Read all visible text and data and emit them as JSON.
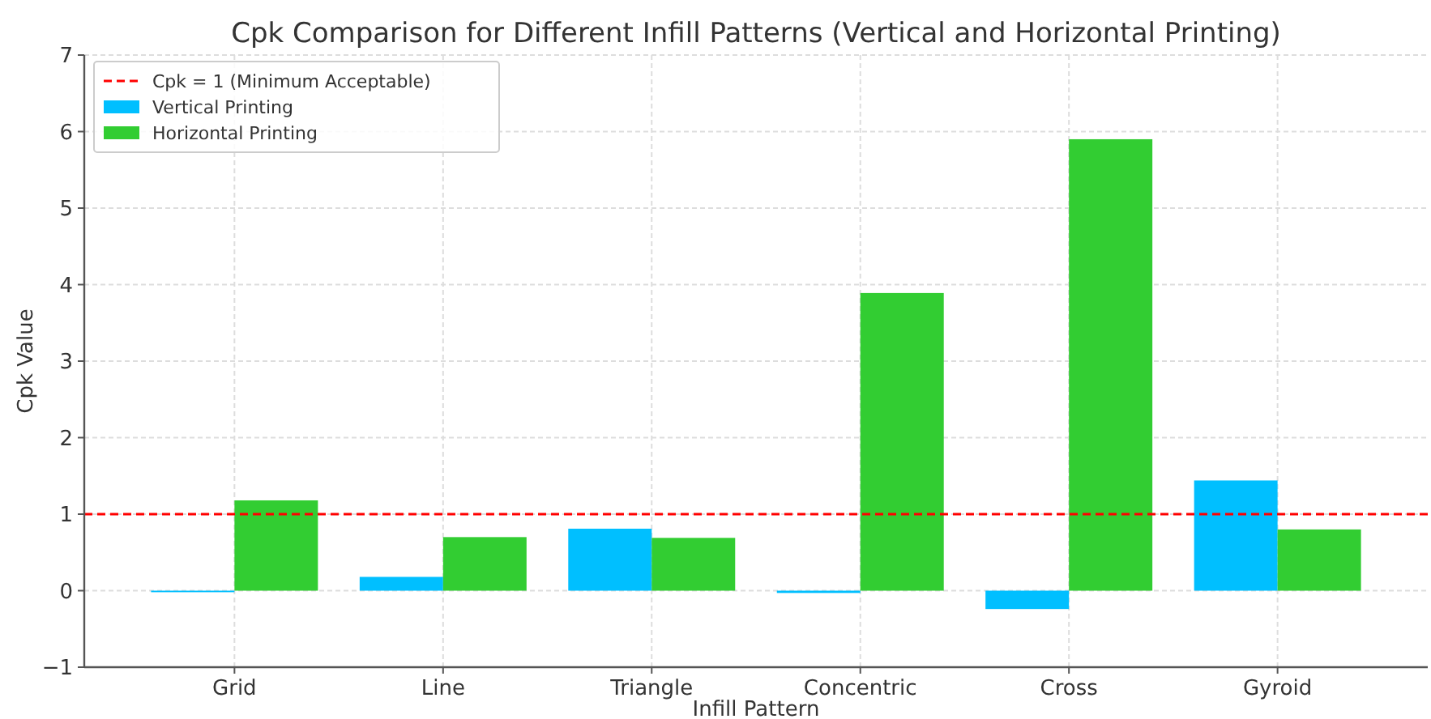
{
  "chart_data": {
    "type": "bar",
    "title": "Cpk Comparison for Different Infill Patterns (Vertical and Horizontal Printing)",
    "xlabel": "Infill Pattern",
    "ylabel": "Cpk Value",
    "categories": [
      "Grid",
      "Line",
      "Triangle",
      "Concentric",
      "Cross",
      "Gyroid"
    ],
    "series": [
      {
        "name": "Vertical Printing",
        "color": "#00bfff",
        "values": [
          -0.02,
          0.18,
          0.81,
          -0.03,
          -0.24,
          1.44
        ]
      },
      {
        "name": "Horizontal Printing",
        "color": "#32cd32",
        "values": [
          1.18,
          0.7,
          0.69,
          3.89,
          5.9,
          0.8
        ]
      }
    ],
    "ylim": [
      -1,
      7
    ],
    "yticks": [
      {
        "value": -1,
        "label": "−1"
      },
      0,
      1,
      2,
      3,
      4,
      5,
      6,
      7
    ],
    "ref_lines": [
      {
        "axis": "y",
        "value": 1,
        "label": "Cpk = 1 (Minimum Acceptable)",
        "color": "#ff0000",
        "line_style": "dashed"
      }
    ],
    "grid": true,
    "legend": "top left"
  }
}
